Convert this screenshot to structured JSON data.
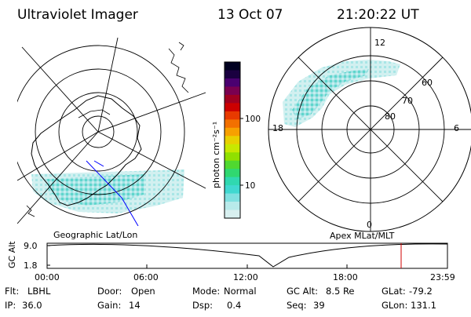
{
  "header": {
    "instrument": "Ultraviolet Imager",
    "date": "13 Oct 07",
    "time": "21:20:22 UT"
  },
  "colorbar": {
    "unit_label": "photon cm⁻²s⁻¹",
    "ticks": [
      "100",
      "10"
    ],
    "colors": [
      "#000020",
      "#1a0040",
      "#4a0070",
      "#7a0050",
      "#a00020",
      "#cc0000",
      "#e83a00",
      "#f27000",
      "#f7a000",
      "#e8d000",
      "#c8e800",
      "#90e000",
      "#50d830",
      "#30d870",
      "#30d8b0",
      "#40d8d0",
      "#80e0e0",
      "#b8eaea",
      "#d8f0f0"
    ]
  },
  "left_map": {
    "caption": "Geographic Lat/Lon"
  },
  "right_map": {
    "caption": "Apex MLat/MLT",
    "mlt_labels": {
      "top": "12",
      "left": "18",
      "right": "6",
      "bottom": "0"
    },
    "lat_labels": [
      "60",
      "70",
      "80"
    ]
  },
  "altitude_plot": {
    "axis_label": "GC Alt",
    "y_ticks": [
      "9.0",
      "1.8"
    ],
    "x_ticks": [
      "00:00",
      "06:00",
      "12:00",
      "18:00",
      "23:59"
    ]
  },
  "status": {
    "row1": [
      {
        "key": "Flt:",
        "value": "LBHL"
      },
      {
        "key": "Door:",
        "value": "Open"
      },
      {
        "key": "Mode:",
        "value": "Normal"
      },
      {
        "key": "GC Alt:",
        "value": "8.5 Re"
      },
      {
        "key": "GLat:",
        "value": "-79.2"
      }
    ],
    "row2": [
      {
        "key": "IP:",
        "value": "36.0"
      },
      {
        "key": "Gain:",
        "value": "14"
      },
      {
        "key": "Dsp:",
        "value": "0.4"
      },
      {
        "key": "Seq:",
        "value": "39"
      },
      {
        "key": "GLon:",
        "value": "131.1"
      }
    ]
  },
  "accent_colors": {
    "aurora_light": "#cdeef0",
    "aurora_mid": "#7ed8dc",
    "aurora_dense": "#3cd0b8",
    "time_marker": "#d00000",
    "track_line": "#0000ff"
  }
}
